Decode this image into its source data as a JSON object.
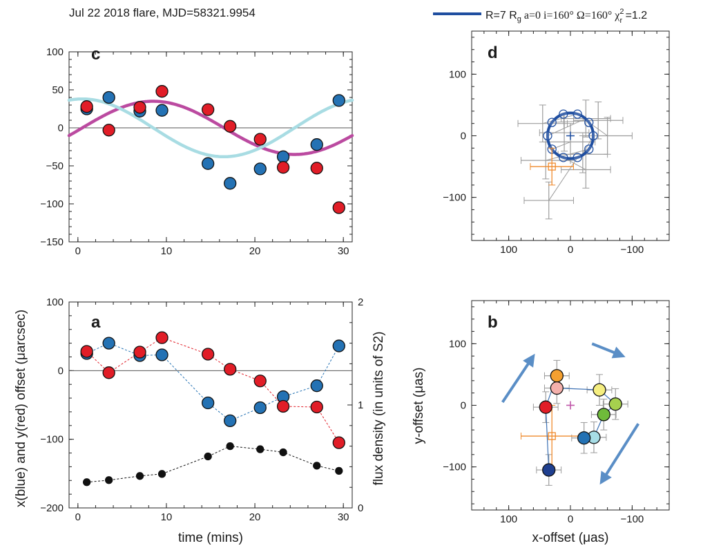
{
  "header": {
    "title": "Jul 22 2018 flare, MJD=58321.9954",
    "legend_text": "R=7 R",
    "legend_sub": "g",
    "legend_rest": "  a=0  i=160°  Ω=160°  χ",
    "legend_chi_sup": "2",
    "legend_chi_sub": "r",
    "legend_val": " =1.2"
  },
  "colors": {
    "blue": "#2472b4",
    "red": "#e11d27",
    "magenta": "#bb4aa0",
    "cyan": "#a8dce3",
    "orbit": "#1f4ea0",
    "orange": "#ef8a2c",
    "gray": "#9b9b9b",
    "black": "#111111",
    "arrow": "#5a8ec6"
  },
  "axis_labels": {
    "left_y": "x(blue) and y(red) offset (μarcsec)",
    "right_y": "flux density (in units of S2)",
    "time_x": "time (mins)",
    "pos_y": "y-offset (μas)",
    "pos_x": "x-offset (μas)"
  },
  "chart_data": [
    {
      "panel": "c",
      "type": "scatter",
      "title": "",
      "xlabel": "",
      "ylabel": "",
      "xlim": [
        -1,
        31
      ],
      "ylim": [
        -150,
        100
      ],
      "xticks": [
        0,
        10,
        20,
        30
      ],
      "yticks": [
        -150,
        -100,
        -50,
        0,
        50,
        100
      ],
      "zero_line": true,
      "series": [
        {
          "color_key": "blue",
          "x": [
            1.0,
            3.5,
            7.0,
            9.5,
            14.7,
            17.2,
            20.6,
            23.2,
            27.0,
            29.5
          ],
          "y": [
            25,
            40,
            22,
            23,
            -47,
            -73,
            -54,
            -38,
            -22,
            36
          ],
          "yerr": [
            49,
            33,
            30,
            31,
            28,
            28,
            18,
            21,
            20,
            28
          ]
        },
        {
          "color_key": "red",
          "x": [
            1.0,
            3.5,
            7.0,
            9.5,
            14.7,
            17.2,
            20.6,
            23.2,
            27.0,
            29.5
          ],
          "y": [
            28,
            -3,
            27,
            48,
            24,
            2,
            -15,
            -52,
            -53,
            -105
          ],
          "yerr": [
            32,
            17,
            18,
            24,
            23,
            19,
            12,
            20,
            25,
            24
          ]
        }
      ],
      "model_curves": [
        {
          "color_key": "magenta",
          "amplitude": 35,
          "period": 32,
          "peak_x": 8.5,
          "offset": 0
        },
        {
          "color_key": "cyan",
          "amplitude": 38,
          "period": 32,
          "peak_x": 0.5,
          "offset": 0
        }
      ]
    },
    {
      "panel": "a",
      "type": "line",
      "title": "",
      "xlabel": "time (mins)",
      "ylabel": "x(blue) and y(red) offset (μarcsec)",
      "y2label": "flux density (in units of S2)",
      "xlim": [
        -1,
        31
      ],
      "ylim": [
        -200,
        100
      ],
      "y2lim": [
        0,
        2
      ],
      "xticks": [
        0,
        10,
        20,
        30
      ],
      "yticks": [
        -200,
        -100,
        0,
        100
      ],
      "y2ticks": [
        0,
        1,
        2
      ],
      "zero_line": true,
      "series": [
        {
          "color_key": "blue",
          "x": [
            1.0,
            3.5,
            7.0,
            9.5,
            14.7,
            17.2,
            20.6,
            23.2,
            27.0,
            29.5
          ],
          "y": [
            25,
            40,
            22,
            23,
            -47,
            -73,
            -54,
            -38,
            -22,
            36
          ],
          "yerr": [
            49,
            33,
            30,
            31,
            28,
            28,
            18,
            21,
            20,
            28
          ]
        },
        {
          "color_key": "red",
          "x": [
            1.0,
            3.5,
            7.0,
            9.5,
            14.7,
            17.2,
            20.6,
            23.2,
            27.0,
            29.5
          ],
          "y": [
            28,
            -3,
            27,
            48,
            24,
            2,
            -15,
            -52,
            -53,
            -105
          ],
          "yerr": [
            32,
            17,
            18,
            24,
            23,
            19,
            12,
            20,
            25,
            24
          ]
        },
        {
          "color_key": "black",
          "axis": "right",
          "x": [
            1.0,
            3.5,
            7.0,
            9.5,
            14.7,
            17.2,
            20.6,
            23.2,
            27.0,
            29.5
          ],
          "y": [
            0.25,
            0.27,
            0.31,
            0.33,
            0.5,
            0.6,
            0.57,
            0.54,
            0.41,
            0.36
          ]
        }
      ]
    },
    {
      "panel": "d",
      "type": "scatter",
      "title": "",
      "xlim": [
        160,
        -160
      ],
      "ylim": [
        -170,
        170
      ],
      "xticks": [
        100,
        0,
        -100
      ],
      "yticks": [
        -100,
        0,
        100
      ],
      "orbit": {
        "center": [
          0,
          0
        ],
        "radius": 37,
        "color_key": "orbit"
      },
      "orbit_points_angles_deg": [
        0,
        36,
        72,
        108,
        144,
        180,
        216,
        252,
        288,
        324
      ],
      "center_marker": [
        0,
        0
      ],
      "star_marker": [
        30,
        -50
      ],
      "star_err": [
        {
          "xerr": 35,
          "yerr": 30
        }
      ],
      "data_points": [
        {
          "x": -25,
          "y": 28,
          "xerr": 40,
          "yerr": 30
        },
        {
          "x": -45,
          "y": 25,
          "xerr": 40,
          "yerr": 30
        },
        {
          "x": 10,
          "y": 5,
          "xerr": 40,
          "yerr": 30
        },
        {
          "x": 45,
          "y": 20,
          "xerr": 40,
          "yerr": 30
        },
        {
          "x": -60,
          "y": 0,
          "xerr": 40,
          "yerr": 30
        },
        {
          "x": -20,
          "y": -30,
          "xerr": 40,
          "yerr": 30
        },
        {
          "x": 40,
          "y": -40,
          "xerr": 40,
          "yerr": 30
        },
        {
          "x": 35,
          "y": -105,
          "xerr": 40,
          "yerr": 30
        },
        {
          "x": -25,
          "y": -55,
          "xerr": 40,
          "yerr": 30
        },
        {
          "x": 0,
          "y": -10,
          "xerr": 40,
          "yerr": 30
        }
      ]
    },
    {
      "panel": "b",
      "type": "scatter",
      "title": "",
      "xlabel": "x-offset (μas)",
      "ylabel": "y-offset (μas)",
      "xlim": [
        160,
        -160
      ],
      "ylim": [
        -170,
        170
      ],
      "xticks": [
        100,
        0,
        -100
      ],
      "yticks": [
        -100,
        0,
        100
      ],
      "center_marker": [
        0,
        0
      ],
      "star_marker": [
        30,
        -50
      ],
      "points": [
        {
          "x": 35,
          "y": -105,
          "color": "#1f3f8f"
        },
        {
          "x": 40,
          "y": -3,
          "color": "#e11d27"
        },
        {
          "x": 22,
          "y": 48,
          "color": "#f4a030"
        },
        {
          "x": 22,
          "y": 28,
          "color": "#f4b0ac"
        },
        {
          "x": -47,
          "y": 25,
          "color": "#f5ee80"
        },
        {
          "x": -73,
          "y": 2,
          "color": "#a6d04e"
        },
        {
          "x": -54,
          "y": -15,
          "color": "#6fbb3a"
        },
        {
          "x": -38,
          "y": -52,
          "color": "#a7dde6"
        },
        {
          "x": -22,
          "y": -53,
          "color": "#2472b4"
        }
      ],
      "arrows": [
        {
          "from": [
            110,
            5
          ],
          "to": [
            60,
            80
          ]
        },
        {
          "from": [
            -35,
            100
          ],
          "to": [
            -85,
            80
          ]
        },
        {
          "from": [
            -110,
            -30
          ],
          "to": [
            -50,
            -125
          ]
        }
      ]
    }
  ],
  "panel_letters": {
    "c": "c",
    "a": "a",
    "d": "d",
    "b": "b"
  }
}
